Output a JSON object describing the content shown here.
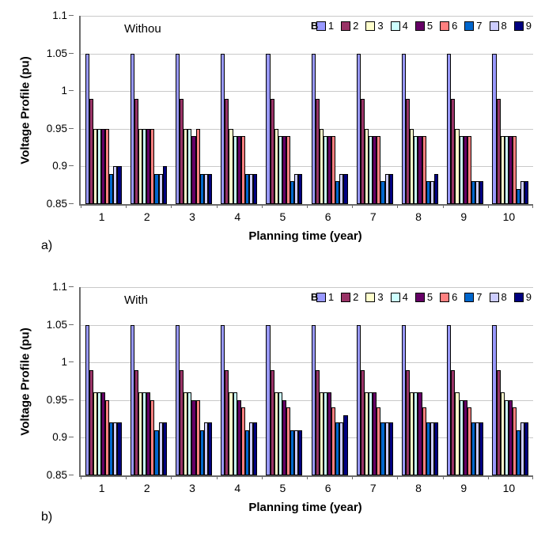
{
  "figure": {
    "background": "#ffffff",
    "grid_color": "#c9c9c9",
    "axis_color": "#6b6b6b"
  },
  "chart_data": [
    {
      "type": "bar",
      "panel_label": "a)",
      "title": "Withou",
      "xlabel": "Planning time (year)",
      "ylabel": "Voltage Profile (pu)",
      "ylim": [
        0.85,
        1.1
      ],
      "yticks": [
        0.85,
        0.9,
        0.95,
        1,
        1.05,
        1.1
      ],
      "ytick_labels": [
        "0.85",
        "0.9",
        "0.95",
        "1",
        "1.05",
        "1.1"
      ],
      "categories": [
        "1",
        "2",
        "3",
        "4",
        "5",
        "6",
        "7",
        "8",
        "9",
        "10"
      ],
      "legend_prefix": "B",
      "legend_position": "top-right-inside",
      "grid": true,
      "series": [
        {
          "name": "1",
          "color": "#9999FF",
          "values": [
            1.05,
            1.05,
            1.05,
            1.05,
            1.05,
            1.05,
            1.05,
            1.05,
            1.05,
            1.05
          ]
        },
        {
          "name": "2",
          "color": "#993366",
          "values": [
            0.99,
            0.99,
            0.99,
            0.99,
            0.99,
            0.99,
            0.99,
            0.99,
            0.99,
            0.99
          ]
        },
        {
          "name": "3",
          "color": "#FFFFCC",
          "values": [
            0.95,
            0.95,
            0.95,
            0.95,
            0.95,
            0.95,
            0.95,
            0.95,
            0.95,
            0.94
          ]
        },
        {
          "name": "4",
          "color": "#CCFFFF",
          "values": [
            0.95,
            0.95,
            0.95,
            0.94,
            0.94,
            0.94,
            0.94,
            0.94,
            0.94,
            0.94
          ]
        },
        {
          "name": "5",
          "color": "#660066",
          "values": [
            0.95,
            0.95,
            0.94,
            0.94,
            0.94,
            0.94,
            0.94,
            0.94,
            0.94,
            0.94
          ]
        },
        {
          "name": "6",
          "color": "#FF8080",
          "values": [
            0.95,
            0.95,
            0.95,
            0.94,
            0.94,
            0.94,
            0.94,
            0.94,
            0.94,
            0.94
          ]
        },
        {
          "name": "7",
          "color": "#0066CC",
          "values": [
            0.89,
            0.89,
            0.89,
            0.89,
            0.88,
            0.88,
            0.88,
            0.88,
            0.88,
            0.87
          ]
        },
        {
          "name": "8",
          "color": "#CCCCFF",
          "values": [
            0.9,
            0.89,
            0.89,
            0.89,
            0.89,
            0.89,
            0.89,
            0.88,
            0.88,
            0.88
          ]
        },
        {
          "name": "9",
          "color": "#000080",
          "values": [
            0.9,
            0.9,
            0.89,
            0.89,
            0.89,
            0.89,
            0.89,
            0.89,
            0.88,
            0.88
          ]
        }
      ]
    },
    {
      "type": "bar",
      "panel_label": "b)",
      "title": "With",
      "xlabel": "Planning time (year)",
      "ylabel": "Voltage Profile (pu)",
      "ylim": [
        0.85,
        1.1
      ],
      "yticks": [
        0.85,
        0.9,
        0.95,
        1,
        1.05,
        1.1
      ],
      "ytick_labels": [
        "0.85",
        "0.9",
        "0.95",
        "1",
        "1.05",
        "1.1"
      ],
      "categories": [
        "1",
        "2",
        "3",
        "4",
        "5",
        "6",
        "7",
        "8",
        "9",
        "10"
      ],
      "legend_prefix": "B",
      "legend_position": "top-right-inside",
      "grid": true,
      "series": [
        {
          "name": "1",
          "color": "#9999FF",
          "values": [
            1.05,
            1.05,
            1.05,
            1.05,
            1.05,
            1.05,
            1.05,
            1.05,
            1.05,
            1.05
          ]
        },
        {
          "name": "2",
          "color": "#993366",
          "values": [
            0.99,
            0.99,
            0.99,
            0.99,
            0.99,
            0.99,
            0.99,
            0.99,
            0.99,
            0.99
          ]
        },
        {
          "name": "3",
          "color": "#FFFFCC",
          "values": [
            0.96,
            0.96,
            0.96,
            0.96,
            0.96,
            0.96,
            0.96,
            0.96,
            0.96,
            0.96
          ]
        },
        {
          "name": "4",
          "color": "#CCFFFF",
          "values": [
            0.96,
            0.96,
            0.96,
            0.96,
            0.96,
            0.96,
            0.96,
            0.96,
            0.95,
            0.95
          ]
        },
        {
          "name": "5",
          "color": "#660066",
          "values": [
            0.96,
            0.96,
            0.95,
            0.95,
            0.95,
            0.96,
            0.96,
            0.96,
            0.95,
            0.95
          ]
        },
        {
          "name": "6",
          "color": "#FF8080",
          "values": [
            0.95,
            0.95,
            0.95,
            0.94,
            0.94,
            0.94,
            0.94,
            0.94,
            0.94,
            0.94
          ]
        },
        {
          "name": "7",
          "color": "#0066CC",
          "values": [
            0.92,
            0.91,
            0.91,
            0.91,
            0.91,
            0.92,
            0.92,
            0.92,
            0.92,
            0.91
          ]
        },
        {
          "name": "8",
          "color": "#CCCCFF",
          "values": [
            0.92,
            0.92,
            0.92,
            0.92,
            0.91,
            0.92,
            0.92,
            0.92,
            0.92,
            0.92
          ]
        },
        {
          "name": "9",
          "color": "#000080",
          "values": [
            0.92,
            0.92,
            0.92,
            0.92,
            0.91,
            0.93,
            0.92,
            0.92,
            0.92,
            0.92
          ]
        }
      ]
    }
  ]
}
